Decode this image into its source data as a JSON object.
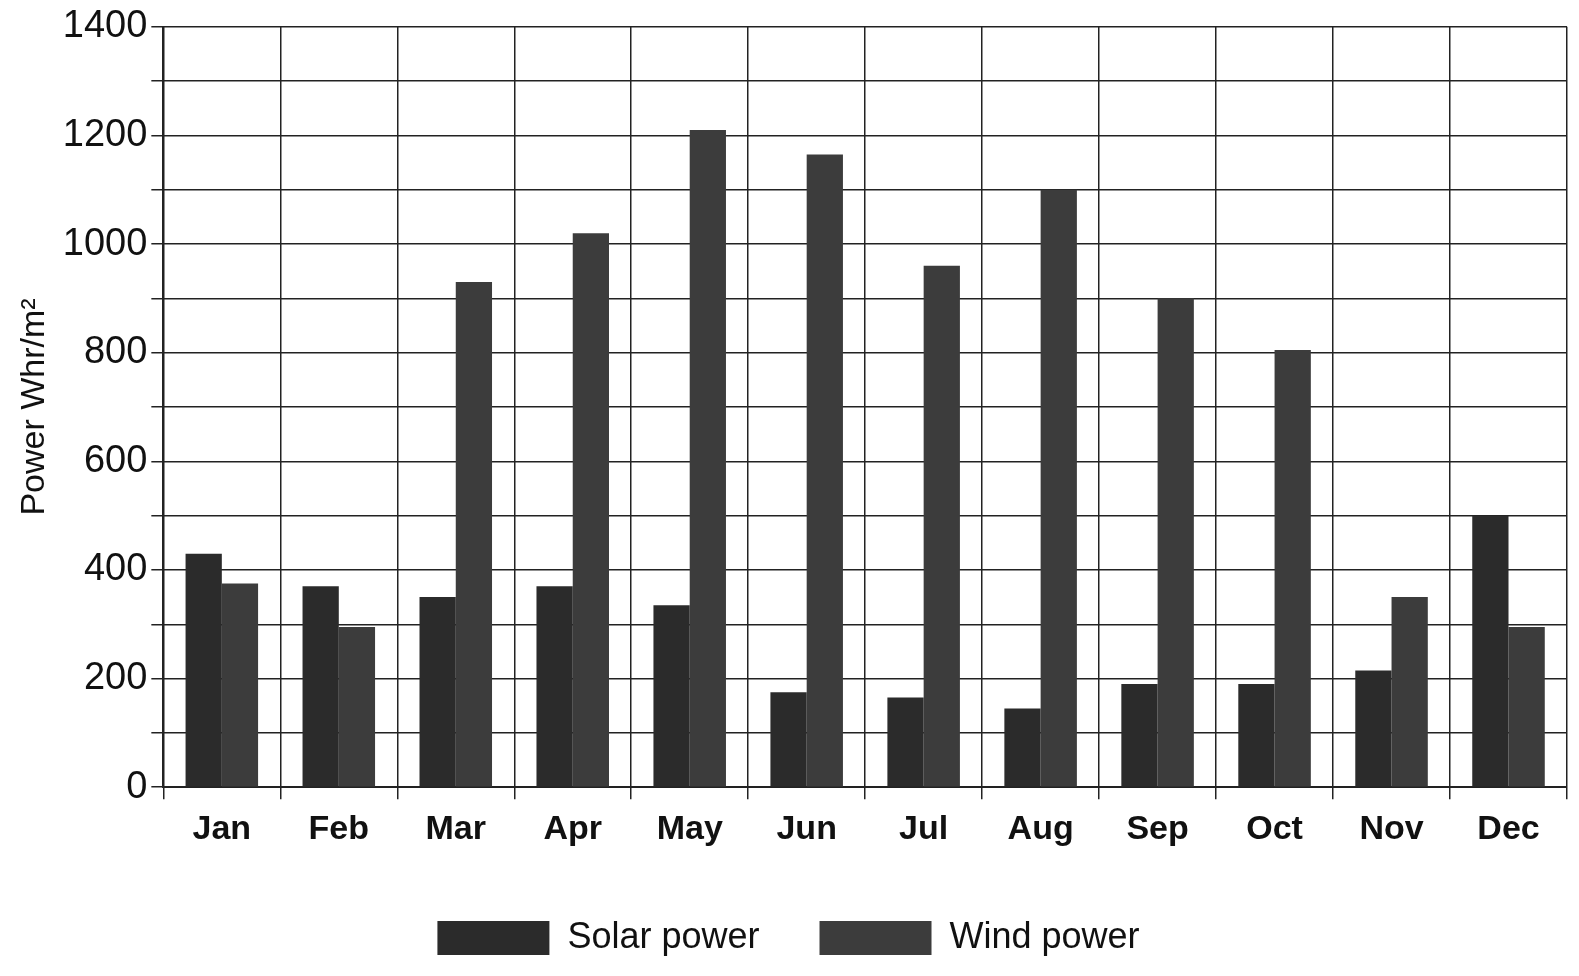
{
  "chart_data": {
    "type": "bar",
    "ylabel": "Power Whr/m²",
    "categories": [
      "Jan",
      "Feb",
      "Mar",
      "Apr",
      "May",
      "Jun",
      "Jul",
      "Aug",
      "Sep",
      "Oct",
      "Nov",
      "Dec"
    ],
    "series": [
      {
        "name": "Solar power",
        "color": "#2b2b2b",
        "values": [
          430,
          370,
          350,
          370,
          335,
          175,
          165,
          145,
          190,
          190,
          215,
          500
        ]
      },
      {
        "name": "Wind power",
        "color": "#3c3c3c",
        "values": [
          375,
          295,
          930,
          1020,
          1210,
          1165,
          960,
          1100,
          900,
          805,
          350,
          295
        ]
      }
    ],
    "ylim": [
      0,
      1400
    ],
    "yticks": [
      0,
      {
        "value": 100,
        "label": null
      },
      200,
      {
        "value": 300,
        "label": null
      },
      400,
      {
        "value": 500,
        "label": null
      },
      600,
      {
        "value": 700,
        "label": null
      },
      800,
      {
        "value": 900,
        "label": null
      },
      1000,
      {
        "value": 1100,
        "label": null
      },
      1200,
      {
        "value": 1300,
        "label": null
      },
      1400
    ],
    "grid": true,
    "legend": "bottom"
  }
}
